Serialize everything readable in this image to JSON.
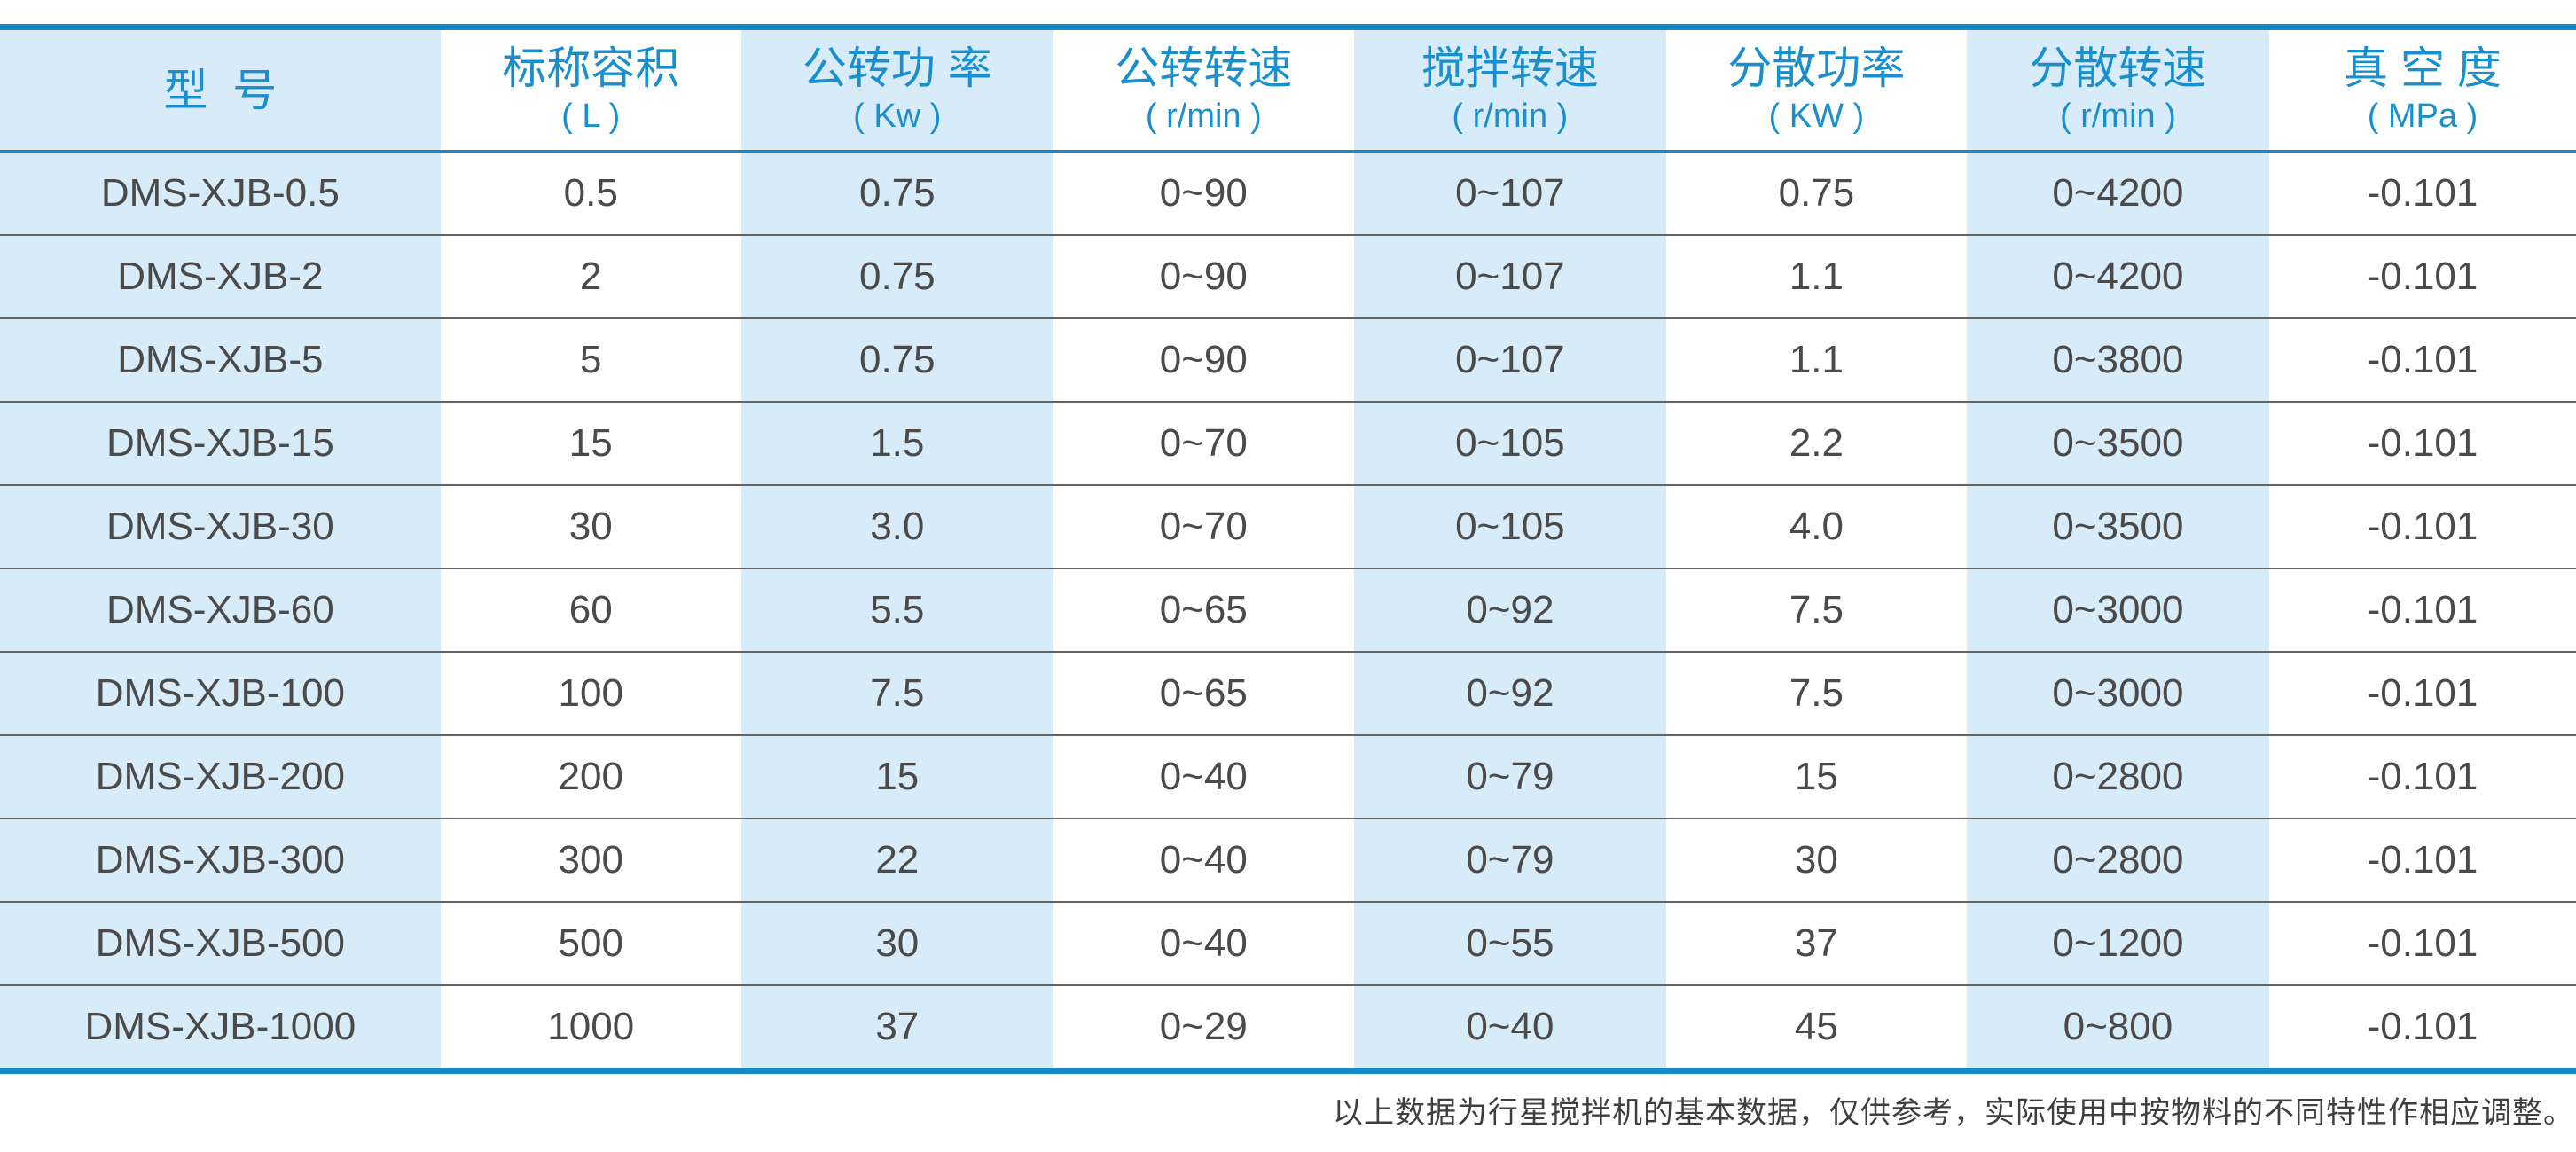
{
  "colors": {
    "accent_blue": "#1589ca",
    "header_text_blue": "#1a8fcd",
    "light_blue_column_bg": "#d8ebf8",
    "body_text": "#4a4a4b",
    "row_separator_gray": "#646464"
  },
  "table": {
    "columns": [
      {
        "label": "型  号",
        "unit": ""
      },
      {
        "label": "标称容积",
        "unit": "( L )"
      },
      {
        "label": "公转功 率",
        "unit": "( Kw )"
      },
      {
        "label": "公转转速",
        "unit": "( r/min )"
      },
      {
        "label": "搅拌转速",
        "unit": "( r/min )"
      },
      {
        "label": "分散功率",
        "unit": "( KW )"
      },
      {
        "label": "分散转速",
        "unit": "( r/min )"
      },
      {
        "label": "真 空 度",
        "unit": "( MPa )"
      }
    ],
    "rows": [
      [
        "DMS-XJB-0.5",
        "0.5",
        "0.75",
        "0~90",
        "0~107",
        "0.75",
        "0~4200",
        "-0.101"
      ],
      [
        "DMS-XJB-2",
        "2",
        "0.75",
        "0~90",
        "0~107",
        "1.1",
        "0~4200",
        "-0.101"
      ],
      [
        "DMS-XJB-5",
        "5",
        "0.75",
        "0~90",
        "0~107",
        "1.1",
        "0~3800",
        "-0.101"
      ],
      [
        "DMS-XJB-15",
        "15",
        "1.5",
        "0~70",
        "0~105",
        "2.2",
        "0~3500",
        "-0.101"
      ],
      [
        "DMS-XJB-30",
        "30",
        "3.0",
        "0~70",
        "0~105",
        "4.0",
        "0~3500",
        "-0.101"
      ],
      [
        "DMS-XJB-60",
        "60",
        "5.5",
        "0~65",
        "0~92",
        "7.5",
        "0~3000",
        "-0.101"
      ],
      [
        "DMS-XJB-100",
        "100",
        "7.5",
        "0~65",
        "0~92",
        "7.5",
        "0~3000",
        "-0.101"
      ],
      [
        "DMS-XJB-200",
        "200",
        "15",
        "0~40",
        "0~79",
        "15",
        "0~2800",
        "-0.101"
      ],
      [
        "DMS-XJB-300",
        "300",
        "22",
        "0~40",
        "0~79",
        "30",
        "0~2800",
        "-0.101"
      ],
      [
        "DMS-XJB-500",
        "500",
        "30",
        "0~40",
        "0~55",
        "37",
        "0~1200",
        "-0.101"
      ],
      [
        "DMS-XJB-1000",
        "1000",
        "37",
        "0~29",
        "0~40",
        "45",
        "0~800",
        "-0.101"
      ]
    ]
  },
  "footer_note": "以上数据为行星搅拌机的基本数据，仅供参考，实际使用中按物料的不同特性作相应调整。"
}
